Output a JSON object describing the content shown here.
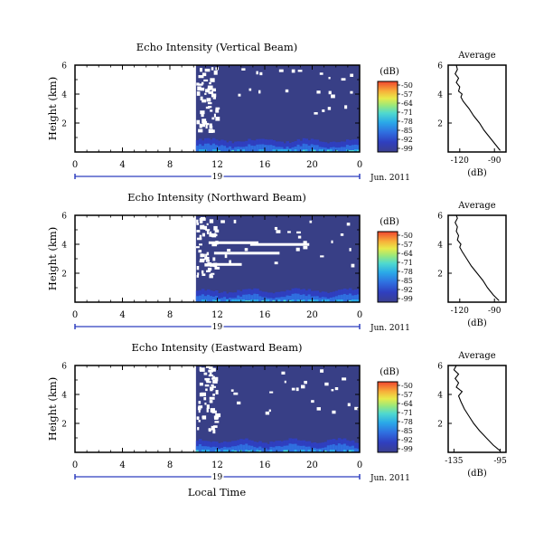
{
  "figure": {
    "xlabel": "Local Time",
    "ylabel": "Height (km)",
    "cbar_unit": "(dB)",
    "avg_title": "Average",
    "avg_xlabel": "(dB)",
    "date_label": "Jun. 2011",
    "day_label": "19",
    "colors": {
      "background": "#383f86",
      "gap": "#ffffff"
    }
  },
  "chart_data": [
    {
      "type": "heatmap",
      "title": "Echo Intensity (Vertical Beam)",
      "xlabel": "",
      "ylabel": "Height (km)",
      "x_ticks": [
        "0",
        "4",
        "8",
        "12",
        "16",
        "20",
        "0"
      ],
      "xlim": [
        0,
        24
      ],
      "y_ticks": [
        "2",
        "4",
        "6"
      ],
      "ylim": [
        0,
        6
      ],
      "data_start_hour": 10.2,
      "colorbar": {
        "unit": "(dB)",
        "ticks": [
          "-50",
          "-57",
          "-64",
          "-71",
          "-78",
          "-85",
          "-92",
          "-99"
        ],
        "range": [
          -99,
          -50
        ]
      },
      "average_panel": {
        "title": "Average",
        "xlabel": "(dB)",
        "x_ticks": [
          "-120",
          "-90"
        ],
        "xlim": [
          -130,
          -80
        ],
        "y_ticks": [
          "2",
          "4",
          "6"
        ],
        "profile": [
          [
            0.1,
            -85
          ],
          [
            0.5,
            -89
          ],
          [
            1.0,
            -94
          ],
          [
            1.5,
            -99
          ],
          [
            2.0,
            -103
          ],
          [
            2.5,
            -108
          ],
          [
            3.0,
            -112
          ],
          [
            3.5,
            -117
          ],
          [
            3.8,
            -119
          ],
          [
            4.0,
            -118
          ],
          [
            4.2,
            -121
          ],
          [
            4.5,
            -120
          ],
          [
            4.8,
            -123
          ],
          [
            5.1,
            -121
          ],
          [
            5.4,
            -124
          ],
          [
            5.7,
            -122
          ],
          [
            6.0,
            -123
          ]
        ]
      }
    },
    {
      "type": "heatmap",
      "title": "Echo Intensity (Northward Beam)",
      "xlabel": "",
      "ylabel": "Height (km)",
      "x_ticks": [
        "0",
        "4",
        "8",
        "12",
        "16",
        "20",
        "0"
      ],
      "xlim": [
        0,
        24
      ],
      "y_ticks": [
        "2",
        "4",
        "6"
      ],
      "ylim": [
        0,
        6
      ],
      "data_start_hour": 10.2,
      "colorbar": {
        "unit": "(dB)",
        "ticks": [
          "-50",
          "-57",
          "-64",
          "-71",
          "-78",
          "-85",
          "-92",
          "-99"
        ],
        "range": [
          -99,
          -50
        ]
      },
      "average_panel": {
        "title": "Average",
        "xlabel": "(dB)",
        "x_ticks": [
          "-120",
          "-90"
        ],
        "xlim": [
          -130,
          -80
        ],
        "y_ticks": [
          "2",
          "4",
          "6"
        ],
        "profile": [
          [
            0.1,
            -86
          ],
          [
            0.5,
            -91
          ],
          [
            1.0,
            -96
          ],
          [
            1.5,
            -100
          ],
          [
            2.0,
            -105
          ],
          [
            2.5,
            -110
          ],
          [
            3.0,
            -114
          ],
          [
            3.5,
            -118
          ],
          [
            3.8,
            -120
          ],
          [
            4.0,
            -119
          ],
          [
            4.3,
            -122
          ],
          [
            4.6,
            -121
          ],
          [
            4.9,
            -123
          ],
          [
            5.2,
            -122
          ],
          [
            5.5,
            -124
          ],
          [
            5.8,
            -122
          ],
          [
            6.0,
            -123
          ]
        ]
      }
    },
    {
      "type": "heatmap",
      "title": "Echo Intensity (Eastward Beam)",
      "xlabel": "Local Time",
      "ylabel": "Height (km)",
      "x_ticks": [
        "0",
        "4",
        "8",
        "12",
        "16",
        "20",
        "0"
      ],
      "xlim": [
        0,
        24
      ],
      "y_ticks": [
        "2",
        "4",
        "6"
      ],
      "ylim": [
        0,
        6
      ],
      "data_start_hour": 10.2,
      "colorbar": {
        "unit": "(dB)",
        "ticks": [
          "-50",
          "-57",
          "-64",
          "-71",
          "-78",
          "-85",
          "-92",
          "-99"
        ],
        "range": [
          -99,
          -50
        ]
      },
      "average_panel": {
        "title": "Average",
        "xlabel": "(dB)",
        "x_ticks": [
          "-135",
          "-95"
        ],
        "xlim": [
          -140,
          -90
        ],
        "y_ticks": [
          "2",
          "4",
          "6"
        ],
        "profile": [
          [
            0.1,
            -95
          ],
          [
            0.5,
            -101
          ],
          [
            1.0,
            -107
          ],
          [
            1.5,
            -113
          ],
          [
            2.0,
            -118
          ],
          [
            2.5,
            -122
          ],
          [
            3.0,
            -126
          ],
          [
            3.5,
            -129
          ],
          [
            3.9,
            -131
          ],
          [
            4.2,
            -128
          ],
          [
            4.5,
            -133
          ],
          [
            4.8,
            -131
          ],
          [
            5.1,
            -134
          ],
          [
            5.4,
            -131
          ],
          [
            5.7,
            -135
          ],
          [
            6.0,
            -133
          ]
        ]
      }
    }
  ]
}
